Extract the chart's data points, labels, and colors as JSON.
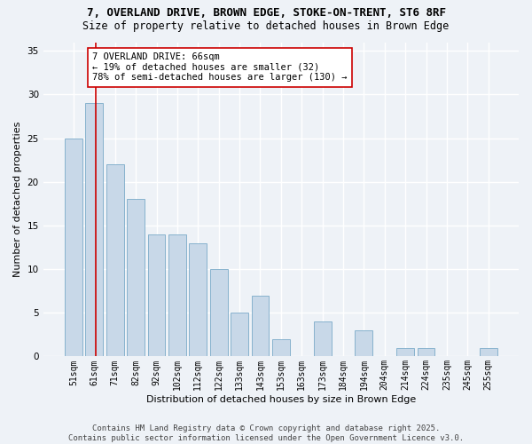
{
  "title1": "7, OVERLAND DRIVE, BROWN EDGE, STOKE-ON-TRENT, ST6 8RF",
  "title2": "Size of property relative to detached houses in Brown Edge",
  "xlabel": "Distribution of detached houses by size in Brown Edge",
  "ylabel": "Number of detached properties",
  "categories": [
    "51sqm",
    "61sqm",
    "71sqm",
    "82sqm",
    "92sqm",
    "102sqm",
    "112sqm",
    "122sqm",
    "133sqm",
    "143sqm",
    "153sqm",
    "163sqm",
    "173sqm",
    "184sqm",
    "194sqm",
    "204sqm",
    "214sqm",
    "224sqm",
    "235sqm",
    "245sqm",
    "255sqm"
  ],
  "values": [
    25,
    29,
    22,
    18,
    14,
    14,
    13,
    10,
    5,
    7,
    2,
    0,
    4,
    0,
    3,
    0,
    1,
    1,
    0,
    0,
    1
  ],
  "bar_color": "#c8d8e8",
  "bar_edge_color": "#7aaac8",
  "vline_color": "#cc0000",
  "vline_x": 1.075,
  "annotation_text": "7 OVERLAND DRIVE: 66sqm\n← 19% of detached houses are smaller (32)\n78% of semi-detached houses are larger (130) →",
  "annotation_box_color": "#ffffff",
  "annotation_box_edge_color": "#cc0000",
  "ylim": [
    0,
    36
  ],
  "yticks": [
    0,
    5,
    10,
    15,
    20,
    25,
    30,
    35
  ],
  "footer": "Contains HM Land Registry data © Crown copyright and database right 2025.\nContains public sector information licensed under the Open Government Licence v3.0.",
  "background_color": "#eef2f7",
  "grid_color": "#ffffff",
  "title1_fontsize": 9,
  "title2_fontsize": 8.5,
  "annotation_fontsize": 7.5,
  "ylabel_fontsize": 8,
  "xlabel_fontsize": 8,
  "footer_fontsize": 6.5,
  "tick_fontsize": 7
}
